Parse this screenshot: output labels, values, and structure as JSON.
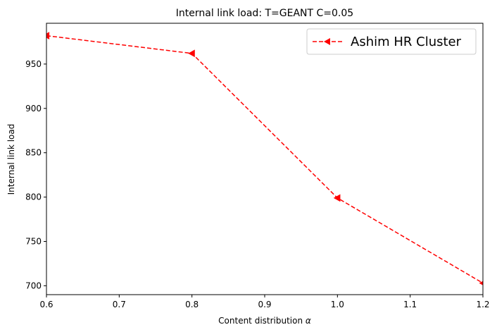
{
  "chart_data": {
    "type": "line",
    "title": "Internal link load: T=GEANT C=0.05",
    "xlabel": "Content distribution α",
    "ylabel": "Internal link load",
    "xlim": [
      0.6,
      1.2
    ],
    "ylim": [
      690,
      996
    ],
    "xticks": [
      0.6,
      0.7,
      0.8,
      0.9,
      1.0,
      1.1,
      1.2
    ],
    "xtick_labels": [
      "0.6",
      "0.7",
      "0.8",
      "0.9",
      "1.0",
      "1.1",
      "1.2"
    ],
    "yticks": [
      700,
      750,
      800,
      850,
      900,
      950
    ],
    "ytick_labels": [
      "700",
      "750",
      "800",
      "850",
      "900",
      "950"
    ],
    "grid": false,
    "legend_position": "top-right",
    "series": [
      {
        "name": "Ashim HR Cluster",
        "color": "#ff0000",
        "line_style": "dashed",
        "marker": "triangle-left",
        "x": [
          0.6,
          0.8,
          1.0,
          1.2
        ],
        "y": [
          982,
          962,
          799,
          703
        ]
      }
    ]
  }
}
